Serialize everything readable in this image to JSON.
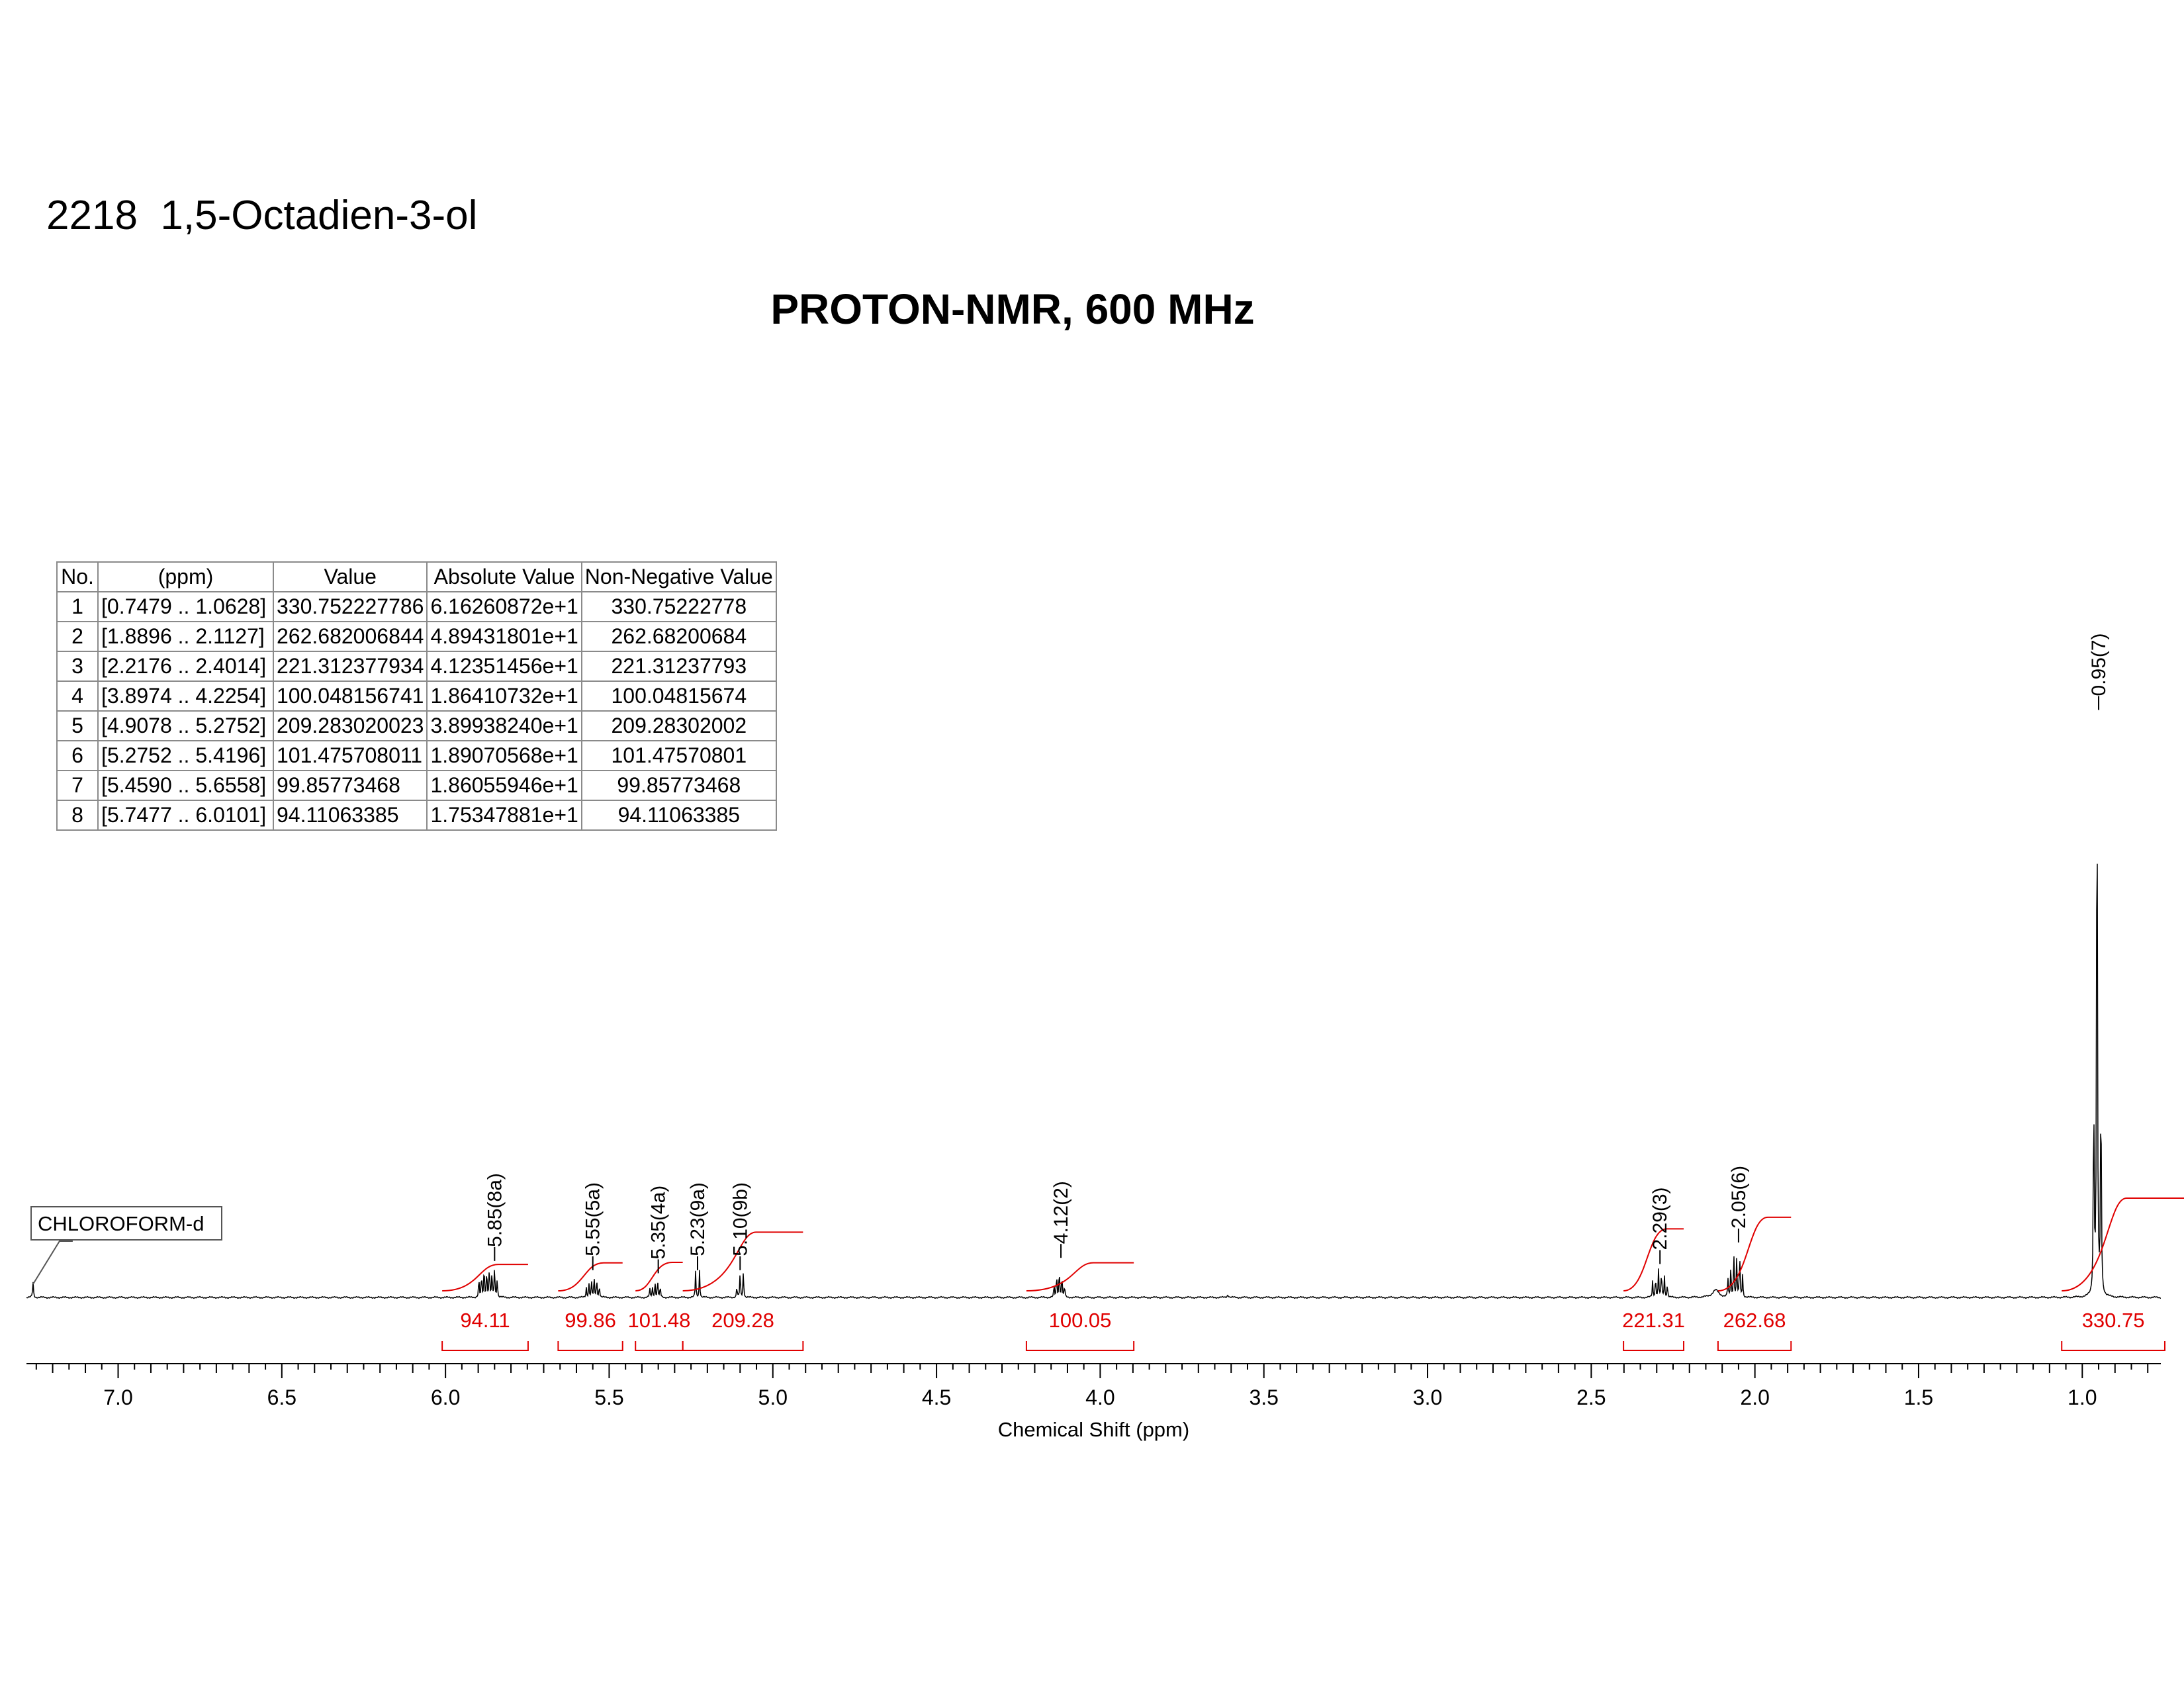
{
  "compound_title": "2218  1,5-Octadien-3-ol",
  "chart_data": {
    "type": "line",
    "title": "PROTON-NMR, 600 MHz",
    "xlabel": "Chemical Shift (ppm)",
    "ylabel": "",
    "x_reversed": true,
    "xlim": [
      7.28,
      0.76
    ],
    "ticks": [
      "7.0",
      "6.5",
      "6.0",
      "5.5",
      "5.0",
      "4.5",
      "4.0",
      "3.5",
      "3.0",
      "2.5",
      "2.0",
      "1.5",
      "1.0"
    ],
    "solvent_label": "CHLOROFORM-d",
    "solvent_shift": 7.26,
    "peaks": [
      {
        "label": "5.85(8a)",
        "shift": 5.85,
        "height": 0.055
      },
      {
        "label": "5.55(5a)",
        "shift": 5.55,
        "height": 0.04
      },
      {
        "label": "5.35(4a)",
        "shift": 5.35,
        "height": 0.035
      },
      {
        "label": "5.23(9a)",
        "shift": 5.23,
        "height": 0.04
      },
      {
        "label": "5.10(9b)",
        "shift": 5.1,
        "height": 0.04
      },
      {
        "label": "4.12(2)",
        "shift": 4.12,
        "height": 0.06
      },
      {
        "label": "2.29(3)",
        "shift": 2.29,
        "height": 0.05
      },
      {
        "label": "2.05(6)",
        "shift": 2.05,
        "height": 0.085
      },
      {
        "label": "0.95(7)",
        "shift": 0.95,
        "height": 0.95
      }
    ],
    "integrals": [
      {
        "label": "94.11",
        "range": [
          5.7477,
          6.0101
        ],
        "value": 94.11
      },
      {
        "label": "99.86",
        "range": [
          5.459,
          5.6558
        ],
        "value": 99.86
      },
      {
        "label": "101.48",
        "range": [
          5.2752,
          5.4196
        ],
        "value": 101.48
      },
      {
        "label": "209.28",
        "range": [
          4.9078,
          5.2752
        ],
        "value": 209.28
      },
      {
        "label": "100.05",
        "range": [
          3.8974,
          4.2254
        ],
        "value": 100.05
      },
      {
        "label": "221.31",
        "range": [
          2.2176,
          2.4014
        ],
        "value": 221.31
      },
      {
        "label": "262.68",
        "range": [
          1.8896,
          2.1127
        ],
        "value": 262.68
      },
      {
        "label": "330.75",
        "range": [
          0.7479,
          1.0628
        ],
        "value": 330.75
      }
    ]
  },
  "integral_table": {
    "headers": [
      "No.",
      "(ppm)",
      "Value",
      "Absolute Value",
      "Non-Negative Value"
    ],
    "rows": [
      [
        "1",
        "[0.7479 .. 1.0628]",
        "330.752227786",
        "6.16260872e+1",
        "330.75222778"
      ],
      [
        "2",
        "[1.8896 .. 2.1127]",
        "262.682006844",
        "4.89431801e+1",
        "262.68200684"
      ],
      [
        "3",
        "[2.2176 .. 2.4014]",
        "221.312377934",
        "4.12351456e+1",
        "221.31237793"
      ],
      [
        "4",
        "[3.8974 .. 4.2254]",
        "100.048156741",
        "1.86410732e+1",
        "100.04815674"
      ],
      [
        "5",
        "[4.9078 .. 5.2752]",
        "209.283020023",
        "3.89938240e+1",
        "209.28302002"
      ],
      [
        "6",
        "[5.2752 .. 5.4196]",
        "101.475708011",
        "1.89070568e+1",
        "101.47570801"
      ],
      [
        "7",
        "[5.4590 .. 5.6558]",
        "99.85773468",
        "1.86055946e+1",
        "99.85773468"
      ],
      [
        "8",
        "[5.7477 .. 6.0101]",
        "94.11063385",
        "1.75347881e+1",
        "94.11063385"
      ]
    ]
  }
}
